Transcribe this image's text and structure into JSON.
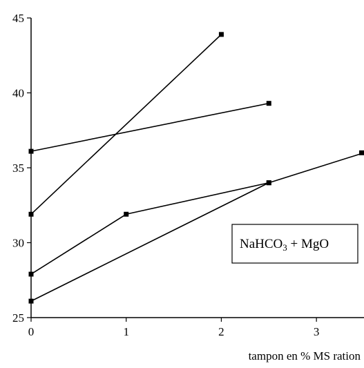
{
  "chart_data": {
    "type": "line",
    "title": "",
    "xlabel": "tampon en % MS ration",
    "ylabel": "",
    "xlim": [
      0,
      3.5
    ],
    "ylim": [
      25,
      45
    ],
    "x_ticks": [
      "0",
      "1",
      "2",
      "3"
    ],
    "y_ticks": [
      "25",
      "30",
      "35",
      "40",
      "45"
    ],
    "grid": false,
    "legend_box": {
      "text_main": "NaHCO",
      "text_sub": "3",
      "text_rest": " + MgO",
      "position": "right"
    },
    "series": [
      {
        "x": [
          0,
          2
        ],
        "y": [
          31.9,
          43.9
        ]
      },
      {
        "x": [
          0,
          2.5
        ],
        "y": [
          36.1,
          39.3
        ]
      },
      {
        "x": [
          0,
          1,
          2.5
        ],
        "y": [
          27.9,
          31.9,
          34.0
        ]
      },
      {
        "x": [
          0,
          2.5,
          3.5
        ],
        "y": [
          26.1,
          34.0,
          36.0
        ]
      }
    ],
    "line_color": "#000000",
    "marker": "square"
  }
}
